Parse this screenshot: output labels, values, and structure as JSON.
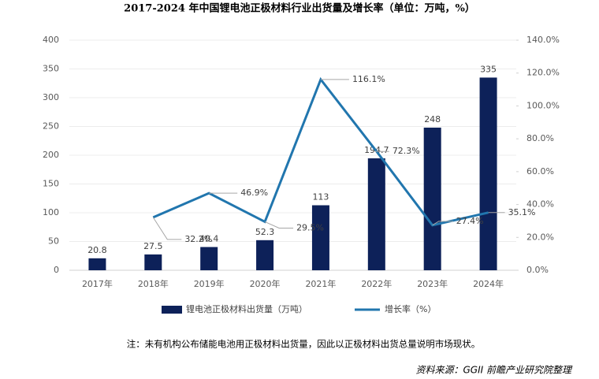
{
  "chart_data": {
    "type": "bar-line",
    "title": "2017-2024 年中国锂电池正极材料行业出货量及增长率（单位：万吨，%）",
    "categories": [
      "2017年",
      "2018年",
      "2019年",
      "2020年",
      "2021年",
      "2022年",
      "2023年",
      "2024年"
    ],
    "series": [
      {
        "name": "锂电池正极材料出货量（万吨）",
        "color": "#0d2159",
        "type": "bar",
        "values": [
          20.8,
          27.5,
          40.4,
          52.3,
          113,
          194.7,
          248,
          335
        ]
      },
      {
        "name": "增长率（%）",
        "color": "#2176ae",
        "type": "line",
        "axis": "y2",
        "values": [
          null,
          32.2,
          46.9,
          29.5,
          116.1,
          72.3,
          27.4,
          35.1
        ],
        "value_labels": [
          null,
          "32.2%",
          "46.9%",
          "29.5%",
          "116.1%",
          "72.3%",
          "27.4%",
          "35.1%"
        ]
      }
    ],
    "ylim": [
      0,
      400
    ],
    "yticks": [
      0,
      50,
      100,
      150,
      200,
      250,
      300,
      350,
      400
    ],
    "y2lim": [
      0,
      140
    ],
    "y2ticks": [
      {
        "value": 0,
        "label": "0.0%"
      },
      {
        "value": 20,
        "label": "20.0%"
      },
      {
        "value": 40,
        "label": "40.0%"
      },
      {
        "value": 60,
        "label": "60.0%"
      },
      {
        "value": 80,
        "label": "80.0%"
      },
      {
        "value": 100,
        "label": "100.0%"
      },
      {
        "value": 120,
        "label": "120.0%"
      },
      {
        "value": 140,
        "label": "140.0%"
      }
    ],
    "grid": true,
    "legend": "bottom",
    "note": "注：未有机构公布储能电池用正极材料出货量，因此以正极材料出货总量说明市场现状。",
    "source": "资料来源：GGII 前瞻产业研究院整理"
  }
}
